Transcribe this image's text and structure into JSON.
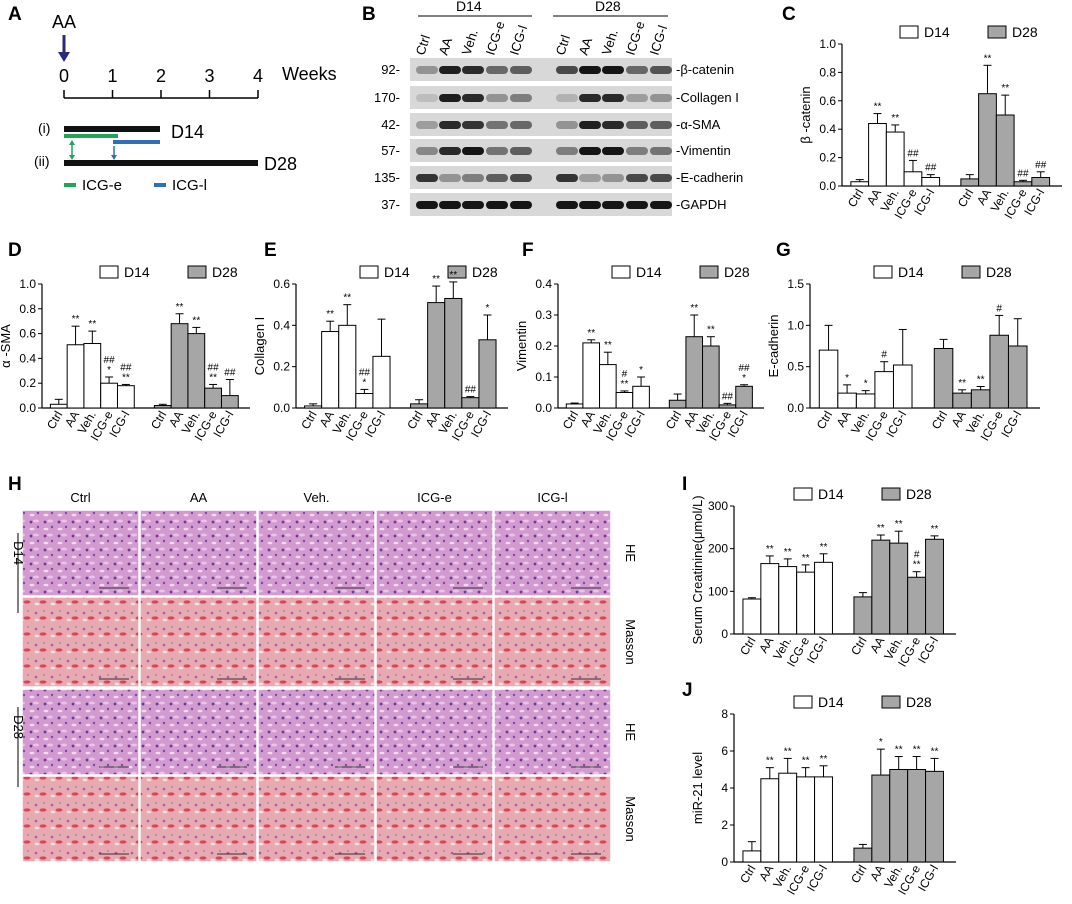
{
  "colors": {
    "d14_fill": "#ffffff",
    "d28_fill": "#a6a6a6",
    "icg_e": "#21a35a",
    "icg_l": "#2f6fb5",
    "timeline_arrow": "#2a2a7a",
    "he_stain": "#c68fc4",
    "masson_stain": "#e3a0a6"
  },
  "panel_labels": [
    "A",
    "B",
    "C",
    "D",
    "E",
    "F",
    "G",
    "H",
    "I",
    "J"
  ],
  "panel_a": {
    "arrow_label": "AA",
    "ticks": [
      "0",
      "1",
      "2",
      "3",
      "4"
    ],
    "axis_unit": "Weeks",
    "row_i": "(i)",
    "row_ii": "(ii)",
    "d14_label": "D14",
    "d28_label": "D28",
    "legend_e": "ICG-e",
    "legend_l": "ICG-l"
  },
  "panel_b": {
    "group_d14": "D14",
    "group_d28": "D28",
    "lanes": [
      "Ctrl",
      "AA",
      "Veh.",
      "ICG-e",
      "ICG-l",
      "Ctrl",
      "AA",
      "Veh.",
      "ICG-e",
      "ICG-l"
    ],
    "markers": [
      "92-",
      "170-",
      "42-",
      "57-",
      "135-",
      "37-"
    ],
    "proteins": [
      "-β-catenin",
      "-Collagen I",
      "-α-SMA",
      "-Vimentin",
      "-E-cadherin",
      "-GAPDH"
    ]
  },
  "panel_h": {
    "columns": [
      "Ctrl",
      "AA",
      "Veh.",
      "ICG-e",
      "ICG-l"
    ],
    "row_labels": [
      "HE",
      "Masson",
      "HE",
      "Masson"
    ],
    "group_labels": [
      "D14",
      "D28"
    ]
  },
  "chart_data": [
    {
      "id": "C",
      "type": "bar",
      "ylabel": "β -catenin",
      "ylim": [
        0,
        1.0
      ],
      "yticks": [
        "0.0",
        "0.2",
        "0.4",
        "0.6",
        "0.8",
        "1.0"
      ],
      "categories": [
        "Ctrl",
        "AA",
        "Veh.",
        "ICG-e",
        "ICG-l"
      ],
      "series": [
        {
          "name": "D14",
          "values": [
            0.03,
            0.44,
            0.38,
            0.1,
            0.06
          ],
          "errors": [
            0.015,
            0.07,
            0.05,
            0.08,
            0.02
          ],
          "marks": [
            "",
            "**",
            "**",
            "##",
            "##"
          ]
        },
        {
          "name": "D28",
          "values": [
            0.05,
            0.65,
            0.5,
            0.03,
            0.06
          ],
          "errors": [
            0.03,
            0.2,
            0.14,
            0.01,
            0.04
          ],
          "marks": [
            "",
            "**",
            "**",
            "##",
            "##"
          ]
        }
      ]
    },
    {
      "id": "D",
      "type": "bar",
      "ylabel": "α -SMA",
      "ylim": [
        0,
        1.0
      ],
      "yticks": [
        "0.0",
        "0.2",
        "0.4",
        "0.6",
        "0.8",
        "1.0"
      ],
      "categories": [
        "Ctrl",
        "AA",
        "Veh.",
        "ICG-e",
        "ICG-l"
      ],
      "series": [
        {
          "name": "D14",
          "values": [
            0.03,
            0.51,
            0.52,
            0.2,
            0.18
          ],
          "errors": [
            0.04,
            0.15,
            0.1,
            0.05,
            0.01
          ],
          "marks": [
            "",
            "**",
            "**",
            "##\n*",
            "##\n**"
          ]
        },
        {
          "name": "D28",
          "values": [
            0.02,
            0.68,
            0.6,
            0.16,
            0.1
          ],
          "errors": [
            0.01,
            0.08,
            0.05,
            0.03,
            0.13
          ],
          "marks": [
            "",
            "**",
            "**",
            "##\n**",
            "##"
          ]
        }
      ]
    },
    {
      "id": "E",
      "type": "bar",
      "ylabel": "Collagen I",
      "ylim": [
        0,
        0.6
      ],
      "yticks": [
        "0.0",
        "0.2",
        "0.4",
        "0.6"
      ],
      "categories": [
        "Ctrl",
        "AA",
        "Veh.",
        "ICG-e",
        "ICG-l"
      ],
      "series": [
        {
          "name": "D14",
          "values": [
            0.01,
            0.37,
            0.4,
            0.07,
            0.25
          ],
          "errors": [
            0.01,
            0.05,
            0.1,
            0.02,
            0.18
          ],
          "marks": [
            "",
            "**",
            "**",
            "##\n*",
            ""
          ]
        },
        {
          "name": "D28",
          "values": [
            0.02,
            0.51,
            0.53,
            0.05,
            0.33
          ],
          "errors": [
            0.02,
            0.08,
            0.08,
            0.005,
            0.12
          ],
          "marks": [
            "",
            "**",
            "**",
            "##",
            "*"
          ]
        }
      ]
    },
    {
      "id": "F",
      "type": "bar",
      "ylabel": "Vimentin",
      "ylim": [
        0,
        0.4
      ],
      "yticks": [
        "0.0",
        "0.1",
        "0.2",
        "0.3",
        "0.4"
      ],
      "categories": [
        "Ctrl",
        "AA",
        "Veh.",
        "ICG-e",
        "ICG-l"
      ],
      "series": [
        {
          "name": "D14",
          "values": [
            0.013,
            0.21,
            0.14,
            0.05,
            0.07
          ],
          "errors": [
            0.003,
            0.01,
            0.04,
            0.005,
            0.03
          ],
          "marks": [
            "",
            "**",
            "**",
            "#\n**",
            "*"
          ]
        },
        {
          "name": "D28",
          "values": [
            0.025,
            0.23,
            0.2,
            0.01,
            0.07
          ],
          "errors": [
            0.02,
            0.07,
            0.03,
            0.005,
            0.005
          ],
          "marks": [
            "",
            "**",
            "**",
            "##",
            "##\n*"
          ]
        }
      ]
    },
    {
      "id": "G",
      "type": "bar",
      "ylabel": "E-cadherin",
      "ylim": [
        0,
        1.5
      ],
      "yticks": [
        "0.0",
        "0.5",
        "1.0",
        "1.5"
      ],
      "categories": [
        "Ctrl",
        "AA",
        "Veh.",
        "ICG-e",
        "ICG-l"
      ],
      "series": [
        {
          "name": "D14",
          "values": [
            0.7,
            0.18,
            0.17,
            0.44,
            0.52
          ],
          "errors": [
            0.3,
            0.1,
            0.04,
            0.12,
            0.43
          ],
          "marks": [
            "",
            "*",
            "*",
            "#",
            ""
          ]
        },
        {
          "name": "D28",
          "values": [
            0.72,
            0.18,
            0.22,
            0.88,
            0.75
          ],
          "errors": [
            0.11,
            0.04,
            0.04,
            0.24,
            0.33
          ],
          "marks": [
            "",
            "**",
            "**",
            "#",
            ""
          ]
        }
      ]
    },
    {
      "id": "I",
      "type": "bar",
      "ylabel": "Serum Creatinine(μmol/L)",
      "ylim": [
        0,
        300
      ],
      "yticks": [
        "0",
        "100",
        "200",
        "300"
      ],
      "categories": [
        "Ctrl",
        "AA",
        "Veh.",
        "ICG-e",
        "ICG-l"
      ],
      "series": [
        {
          "name": "D14",
          "values": [
            82,
            165,
            158,
            145,
            168
          ],
          "errors": [
            3,
            18,
            18,
            17,
            20
          ],
          "marks": [
            "",
            "**",
            "**",
            "**",
            "**"
          ]
        },
        {
          "name": "D28",
          "values": [
            87,
            220,
            213,
            133,
            222
          ],
          "errors": [
            10,
            12,
            28,
            13,
            8
          ],
          "marks": [
            "",
            "**",
            "**",
            "#\n**",
            "**"
          ]
        }
      ]
    },
    {
      "id": "J",
      "type": "bar",
      "ylabel": "miR-21 level",
      "ylim": [
        0,
        8
      ],
      "yticks": [
        "0",
        "2",
        "4",
        "6",
        "8"
      ],
      "categories": [
        "Ctrl",
        "AA",
        "Veh.",
        "ICG-e",
        "ICG-l"
      ],
      "series": [
        {
          "name": "D14",
          "values": [
            0.6,
            4.5,
            4.8,
            4.6,
            4.6
          ],
          "errors": [
            0.5,
            0.6,
            0.8,
            0.5,
            0.6
          ],
          "marks": [
            "",
            "**",
            "**",
            "**",
            "**"
          ]
        },
        {
          "name": "D28",
          "values": [
            0.75,
            4.7,
            5.0,
            5.0,
            4.9
          ],
          "errors": [
            0.2,
            1.4,
            0.7,
            0.7,
            0.7
          ],
          "marks": [
            "",
            "*",
            "**",
            "**",
            "**"
          ]
        }
      ]
    }
  ]
}
